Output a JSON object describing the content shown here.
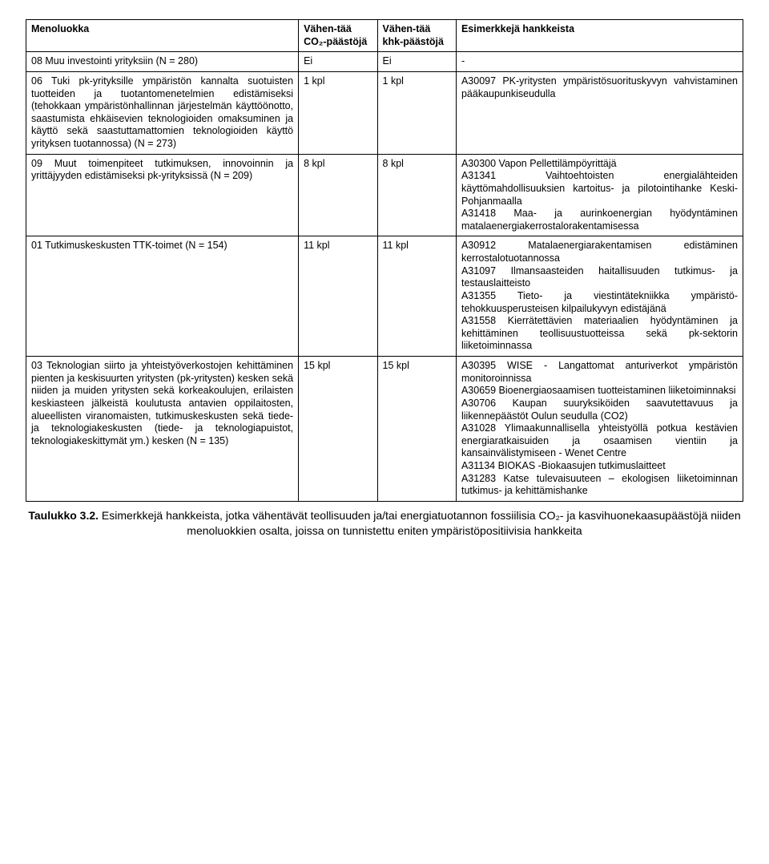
{
  "table": {
    "headers": {
      "col1": "Menoluokka",
      "col2": "Vähen-tää CO₂-päästöjä",
      "col3": "Vähen-tää khk-päästöjä",
      "col4": "Esimerkkejä hankkeista"
    },
    "rows": [
      {
        "c1": "08 Muu investointi yrityksiin (N = 280)",
        "c2": "Ei",
        "c3": "Ei",
        "c4": "-"
      },
      {
        "c1": "06 Tuki pk-yrityksille ympäristön kannalta suotuisten tuotteiden ja tuotantomenetelmien edistämiseksi (tehokkaan ympäristönhallinnan järjestelmän käyttöönotto, saastumista ehkäisevien teknologioiden omaksuminen ja käyttö sekä saastuttamattomien teknologioiden käyttö yrityksen tuotannossa) (N = 273)",
        "c2": "1 kpl",
        "c3": "1 kpl",
        "c4": "A30097 PK-yritysten ympäristösuorituskyvyn vahvistaminen pääkaupunkiseudulla"
      },
      {
        "c1": "09 Muut toimenpiteet tutkimuksen, innovoinnin ja yrittäjyyden edistämiseksi pk-yrityksissä (N = 209)",
        "c2": "8 kpl",
        "c3": "8 kpl",
        "c4": "A30300 Vapon Pellettilämpöyrittäjä\nA31341 Vaihtoehtoisten energialähteiden käyttömahdollisuuksien kartoitus- ja pilotointihanke Keski-Pohjanmaalla\nA31418 Maa- ja aurinkoenergian hyödyntäminen matalaenergiakerrostalorakentamisessa"
      },
      {
        "c1": "01 Tutkimuskeskusten TTK-toimet (N = 154)",
        "c2": "11 kpl",
        "c3": "11 kpl",
        "c4": "A30912 Matalaenergiarakentamisen edistäminen kerrostalotuotannossa\nA31097 Ilmansaasteiden haitallisuuden tutkimus- ja testauslaitteisto\nA31355 Tieto- ja viestintätekniikka ympäristö-tehokkuusperusteisen kilpailukyvyn edistäjänä\nA31558 Kierrätettävien materiaalien hyödyntäminen ja kehittäminen teollisuustuotteissa sekä pk-sektorin liiketoiminnassa"
      },
      {
        "c1": "03 Teknologian siirto ja yhteistyöverkostojen kehittäminen pienten ja keskisuurten yritysten (pk-yritysten) kesken sekä niiden ja muiden yritysten sekä korkeakoulujen, erilaisten keskiasteen jälkeistä koulutusta antavien oppilaitosten, alueellisten viranomaisten, tutkimuskeskusten sekä tiede- ja teknologiakeskusten (tiede- ja teknologiapuistot, teknologiakeskittymät ym.) kesken (N = 135)",
        "c2": "15 kpl",
        "c3": "15 kpl",
        "c4": "A30395 WISE - Langattomat anturiverkot ympäristön monitoroinnissa\nA30659 Bioenergiaosaamisen tuotteistaminen liiketoiminnaksi\nA30706 Kaupan suuryksiköiden saavutettavuus ja liikennepäästöt Oulun seudulla (CO2)\nA31028 Ylimaakunnallisella yhteistyöllä potkua kestävien energiaratkaisuiden ja osaamisen vientiin ja kansainvälistymiseen - Wenet Centre\nA31134 BIOKAS -Biokaasujen tutkimuslaitteet\nA31283 Katse tulevaisuuteen – ekologisen liiketoiminnan tutkimus- ja kehittämishanke"
      }
    ]
  },
  "caption": {
    "label": "Taulukko 3.2.",
    "text": " Esimerkkejä hankkeista, jotka vähentävät teollisuuden ja/tai energiatuotannon fossiilisia CO₂- ja kasvihuonekaasupäästöjä niiden menoluokkien osalta, joissa on tunnistettu eniten ympäristöpositiivisia hankkeita"
  }
}
